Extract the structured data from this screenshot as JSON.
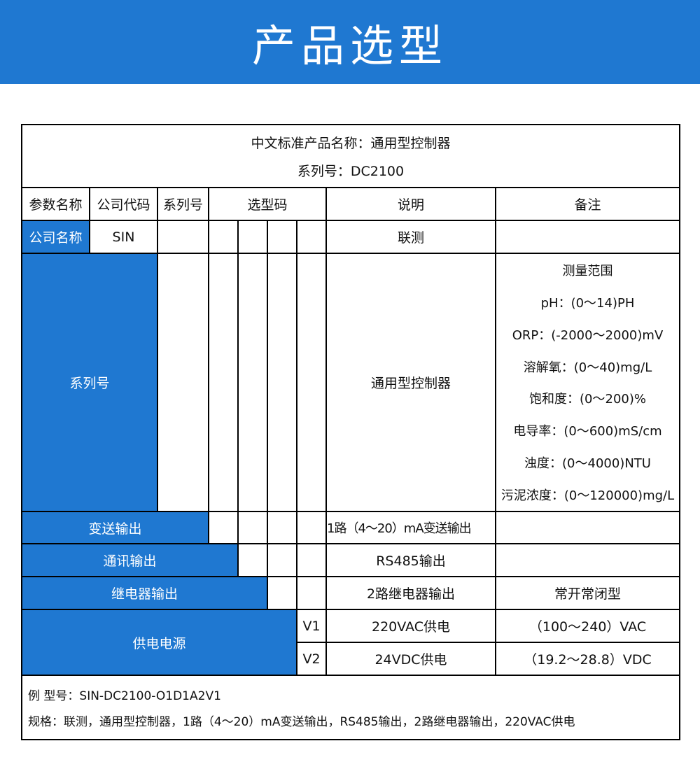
{
  "banner": {
    "title": "产品选型"
  },
  "colors": {
    "accent": "#1f78d1",
    "border": "#000000"
  },
  "table": {
    "product_name": "中文标准产品名称：通用型控制器",
    "series_line": "系列号：DC2100",
    "headers": [
      "参数名称",
      "公司代码",
      "系列号",
      "选型码",
      "说明",
      "备注"
    ],
    "company": {
      "label": "公司名称",
      "code": "SIN",
      "desc": "联测"
    },
    "series": {
      "label": "系列号",
      "desc": "通用型控制器",
      "remarks": [
        "测量范围",
        "pH：(0～14)PH",
        "ORP：(-2000～2000)mV",
        "溶解氧：(0～40)mg/L",
        "饱和度：(0～200)%",
        "电导率：(0～600)mS/cm",
        "浊度：(0～4000)NTU",
        "污泥浓度：(0～120000)mg/L"
      ]
    },
    "transmit": {
      "label": "变送输出",
      "desc": "1路（4～20）mA变送输出",
      "remark": ""
    },
    "comm": {
      "label": "通讯输出",
      "desc": "RS485输出",
      "remark": ""
    },
    "relay": {
      "label": "继电器输出",
      "desc": "2路继电器输出",
      "remark": "常开常闭型"
    },
    "power": {
      "label": "供电电源",
      "options": [
        {
          "code": "V1",
          "desc": "220VAC供电",
          "remark": "（100～240）VAC"
        },
        {
          "code": "V2",
          "desc": "24VDC供电",
          "remark": "（19.2～28.8）VDC"
        }
      ]
    },
    "example_model": "例 型号：SIN-DC2100-O1D1A2V1",
    "example_spec": "规格：联测，通用型控制器，1路（4～20）mA变送输出，RS485输出，2路继电器输出，220VAC供电"
  }
}
